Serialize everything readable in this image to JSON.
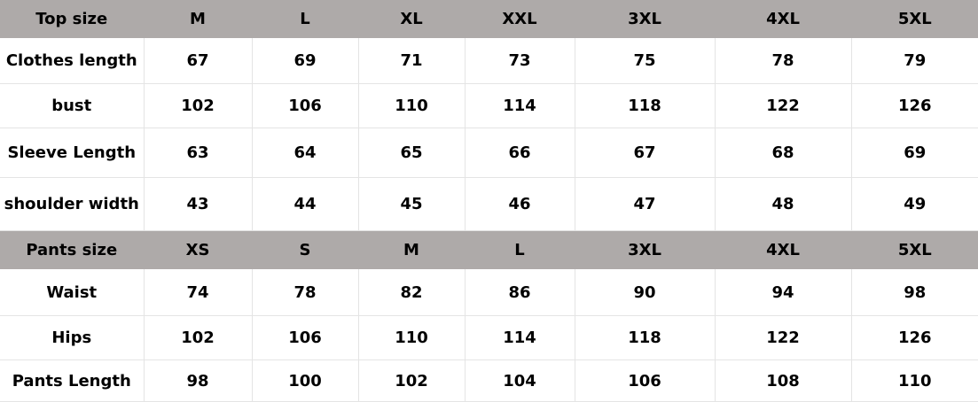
{
  "colors": {
    "header_bg": "#aeaaa9",
    "grid": "#e4e4e4"
  },
  "top": {
    "header": [
      "Top size",
      "M",
      "L",
      "XL",
      "XXL",
      "3XL",
      "4XL",
      "5XL"
    ],
    "rows": [
      [
        "Clothes length",
        "67",
        "69",
        "71",
        "73",
        "75",
        "78",
        "79"
      ],
      [
        "bust",
        "102",
        "106",
        "110",
        "114",
        "118",
        "122",
        "126"
      ],
      [
        "Sleeve Length",
        "63",
        "64",
        "65",
        "66",
        "67",
        "68",
        "69"
      ],
      [
        "shoulder width",
        "43",
        "44",
        "45",
        "46",
        "47",
        "48",
        "49"
      ]
    ]
  },
  "pants": {
    "header": [
      "Pants size",
      "XS",
      "S",
      "M",
      "L",
      "3XL",
      "4XL",
      "5XL"
    ],
    "rows": [
      [
        "Waist",
        "74",
        "78",
        "82",
        "86",
        "90",
        "94",
        "98"
      ],
      [
        "Hips",
        "102",
        "106",
        "110",
        "114",
        "118",
        "122",
        "126"
      ],
      [
        "Pants Length",
        "98",
        "100",
        "102",
        "104",
        "106",
        "108",
        "110"
      ]
    ]
  }
}
